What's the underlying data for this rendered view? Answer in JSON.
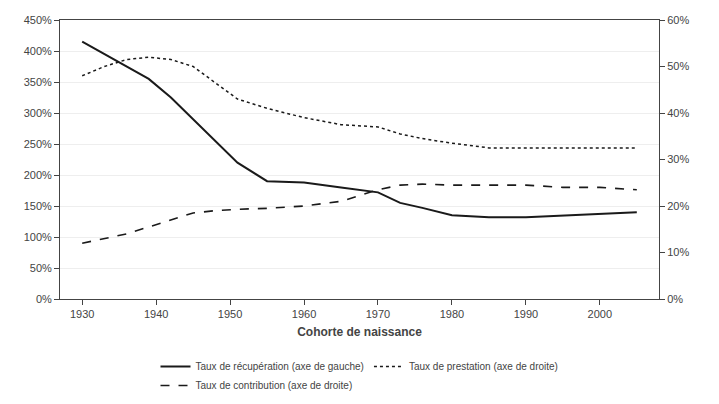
{
  "chart_data": {
    "type": "line",
    "x": [
      1930,
      1933,
      1936,
      1939,
      1942,
      1945,
      1948,
      1951,
      1955,
      1960,
      1965,
      1970,
      1973,
      1976,
      1980,
      1985,
      1990,
      1995,
      2000,
      2005
    ],
    "series": [
      {
        "name": "Taux de récupération (axe de gauche)",
        "color": "#1a1a1a",
        "line_style": "solid",
        "values": [
          4.15,
          3.95,
          3.75,
          3.55,
          3.25,
          2.9,
          2.55,
          2.2,
          1.9,
          1.88,
          1.8,
          1.72,
          1.55,
          1.47,
          1.35,
          1.32,
          1.32,
          1.35,
          1.38,
          1.4
        ]
      },
      {
        "name": "Taux de prestation (axe de droite)",
        "color": "#1a1a1a",
        "line_style": "dotted",
        "axis": "y2",
        "values": [
          0.48,
          0.5,
          0.515,
          0.52,
          0.515,
          0.5,
          0.465,
          0.43,
          0.41,
          0.39,
          0.375,
          0.37,
          0.355,
          0.345,
          0.335,
          0.325,
          0.325,
          0.325,
          0.325,
          0.325
        ]
      },
      {
        "name": "Taux de contribution (axe de droite)",
        "color": "#1a1a1a",
        "line_style": "dashed",
        "axis": "y2",
        "values": [
          0.12,
          0.13,
          0.14,
          0.155,
          0.17,
          0.185,
          0.19,
          0.193,
          0.195,
          0.2,
          0.21,
          0.235,
          0.245,
          0.247,
          0.245,
          0.245,
          0.245,
          0.24,
          0.24,
          0.235
        ]
      }
    ],
    "xlabel": "Cohorte de naissance",
    "xlim": [
      1927,
      2008
    ],
    "xticks": [
      1930,
      1940,
      1950,
      1960,
      1970,
      1980,
      1990,
      2000
    ],
    "ylim": [
      0,
      4.5
    ],
    "yticks": [
      {
        "value": 0.0,
        "label": "0%"
      },
      {
        "value": 0.5,
        "label": "50%"
      },
      {
        "value": 1.0,
        "label": "100%"
      },
      {
        "value": 1.5,
        "label": "150%"
      },
      {
        "value": 2.0,
        "label": "200%"
      },
      {
        "value": 2.5,
        "label": "250%"
      },
      {
        "value": 3.0,
        "label": "300%"
      },
      {
        "value": 3.5,
        "label": "350%"
      },
      {
        "value": 4.0,
        "label": "400%"
      },
      {
        "value": 4.5,
        "label": "450%"
      }
    ],
    "y2lim": [
      0,
      0.6
    ],
    "y2ticks": [
      {
        "value": 0.0,
        "label": "0%"
      },
      {
        "value": 0.1,
        "label": "10%"
      },
      {
        "value": 0.2,
        "label": "20%"
      },
      {
        "value": 0.3,
        "label": "30%"
      },
      {
        "value": 0.4,
        "label": "40%"
      },
      {
        "value": 0.5,
        "label": "50%"
      },
      {
        "value": 0.6,
        "label": "60%"
      }
    ],
    "grid": true,
    "legend": "bottom"
  }
}
